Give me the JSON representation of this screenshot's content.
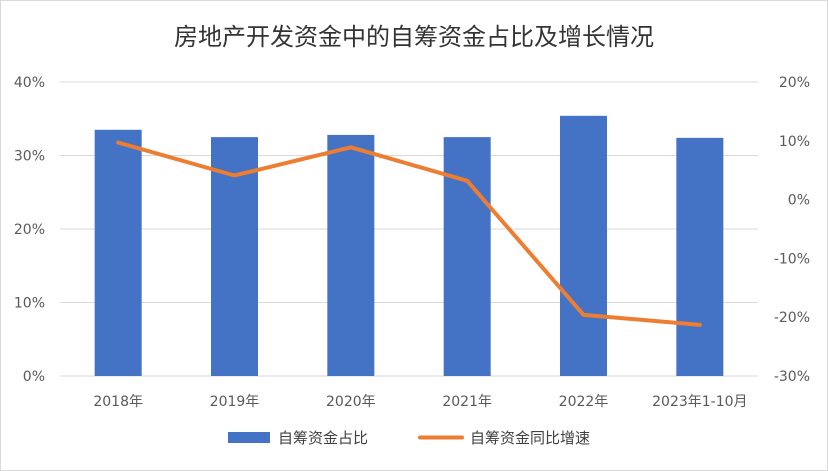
{
  "chart_data": {
    "type": "bar+line",
    "title": "房地产开发资金中的自筹资金占比及增长情况",
    "categories": [
      "2018年",
      "2019年",
      "2020年",
      "2021年",
      "2022年",
      "2023年1-10月"
    ],
    "series": [
      {
        "name": "自筹资金占比",
        "type": "bar",
        "axis": "left",
        "color": "#4472C4",
        "values": [
          33.5,
          32.5,
          32.8,
          32.5,
          35.4,
          32.4
        ]
      },
      {
        "name": "自筹资金同比增速",
        "type": "line",
        "axis": "right",
        "color": "#ED7D31",
        "values": [
          9.7,
          4.1,
          8.9,
          3.2,
          -19.6,
          -21.3
        ]
      }
    ],
    "y_left": {
      "min": 0,
      "max": 40,
      "step": 10,
      "ticks": [
        "0%",
        "10%",
        "20%",
        "30%",
        "40%"
      ]
    },
    "y_right": {
      "min": -30,
      "max": 20,
      "step": 10,
      "ticks": [
        "-30%",
        "-20%",
        "-10%",
        "0%",
        "10%",
        "20%"
      ]
    },
    "grid": true,
    "legend_position": "bottom"
  }
}
